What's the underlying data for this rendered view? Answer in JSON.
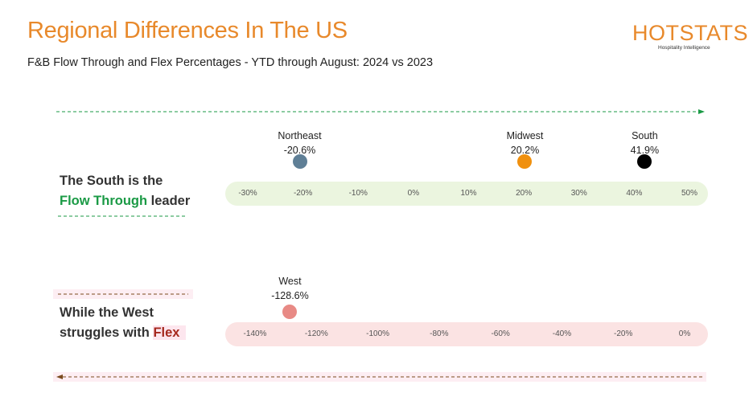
{
  "header": {
    "title": "Regional Differences In The US",
    "subtitle": "F&B Flow Through and Flex Percentages - YTD through August: 2024 vs 2023"
  },
  "logo": {
    "text": "HOTSTATS",
    "tagline": "Hospitality Intelligence"
  },
  "callouts": {
    "flow_line1": "The South is the",
    "flow_highlight": "Flow Through",
    "flow_rest": " leader",
    "flex_line1": "While the West",
    "flex_pre": "struggles with ",
    "flex_highlight": "Flex"
  },
  "chart_data": [
    {
      "type": "scatter",
      "title": "",
      "xlim": [
        -30,
        50
      ],
      "ticks": [
        "-30%",
        "-20%",
        "-10%",
        "0%",
        "10%",
        "20%",
        "30%",
        "40%",
        "50%"
      ],
      "tick_values": [
        -30,
        -20,
        -10,
        0,
        10,
        20,
        30,
        40,
        50
      ],
      "points": [
        {
          "name": "Northeast",
          "value": -20.6,
          "label": "-20.6%",
          "color": "#5f7f96"
        },
        {
          "name": "Midwest",
          "value": 20.2,
          "label": "20.2%",
          "color": "#f0900e"
        },
        {
          "name": "South",
          "value": 41.9,
          "label": "41.9%",
          "color": "#000000"
        }
      ],
      "band_color": "#ebf5df"
    },
    {
      "type": "scatter",
      "title": "",
      "xlim": [
        -140,
        0
      ],
      "ticks": [
        "-140%",
        "-120%",
        "-100%",
        "-80%",
        "-60%",
        "-40%",
        "-20%",
        "0%"
      ],
      "tick_values": [
        -140,
        -120,
        -100,
        -80,
        -60,
        -40,
        -20,
        0
      ],
      "points": [
        {
          "name": "West",
          "value": -128.6,
          "label": "-128.6%",
          "color": "#e88a85"
        }
      ],
      "band_color": "#fbe3e3"
    }
  ]
}
